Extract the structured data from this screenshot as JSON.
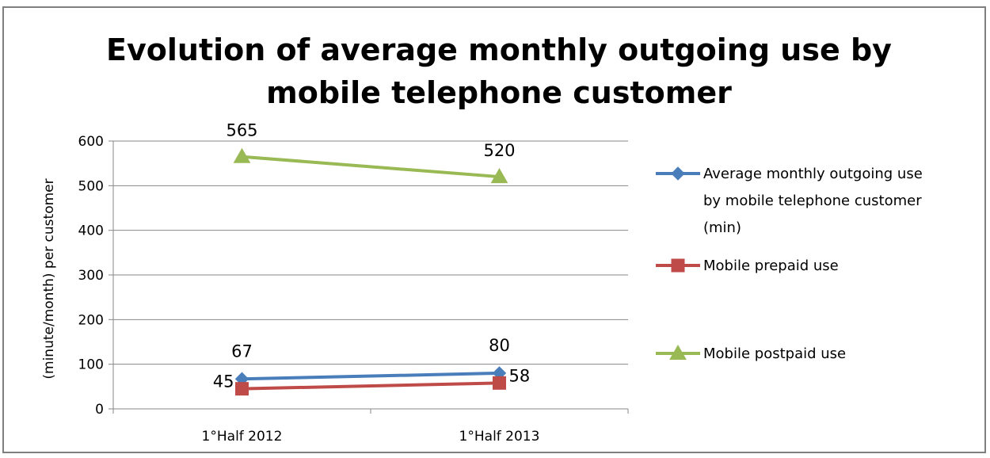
{
  "chart_data": {
    "type": "line",
    "title_lines": [
      "Evolution of average monthly outgoing use by",
      "mobile telephone customer"
    ],
    "ylabel": "(minute/month) per customer",
    "xlabel": "",
    "categories": [
      "1°Half 2012",
      "1°Half 2013"
    ],
    "ylim": [
      0,
      600
    ],
    "yticks": [
      "0",
      "100",
      "200",
      "300",
      "400",
      "500",
      "600"
    ],
    "grid": true,
    "legend_position": "right",
    "series": [
      {
        "name_lines": [
          "Average monthly outgoing use",
          "by mobile telephone customer",
          "(min)"
        ],
        "values": [
          67,
          80
        ],
        "labels": [
          "67",
          "80"
        ],
        "color": "#4a7ebb",
        "marker": "diamond"
      },
      {
        "name_lines": [
          "Mobile prepaid use"
        ],
        "values": [
          45,
          58
        ],
        "labels": [
          "45",
          "58"
        ],
        "color": "#be4b48",
        "marker": "square"
      },
      {
        "name_lines": [
          "Mobile postpaid use"
        ],
        "values": [
          565,
          520
        ],
        "labels": [
          "565",
          "520"
        ],
        "color": "#98b954",
        "marker": "triangle"
      }
    ]
  }
}
